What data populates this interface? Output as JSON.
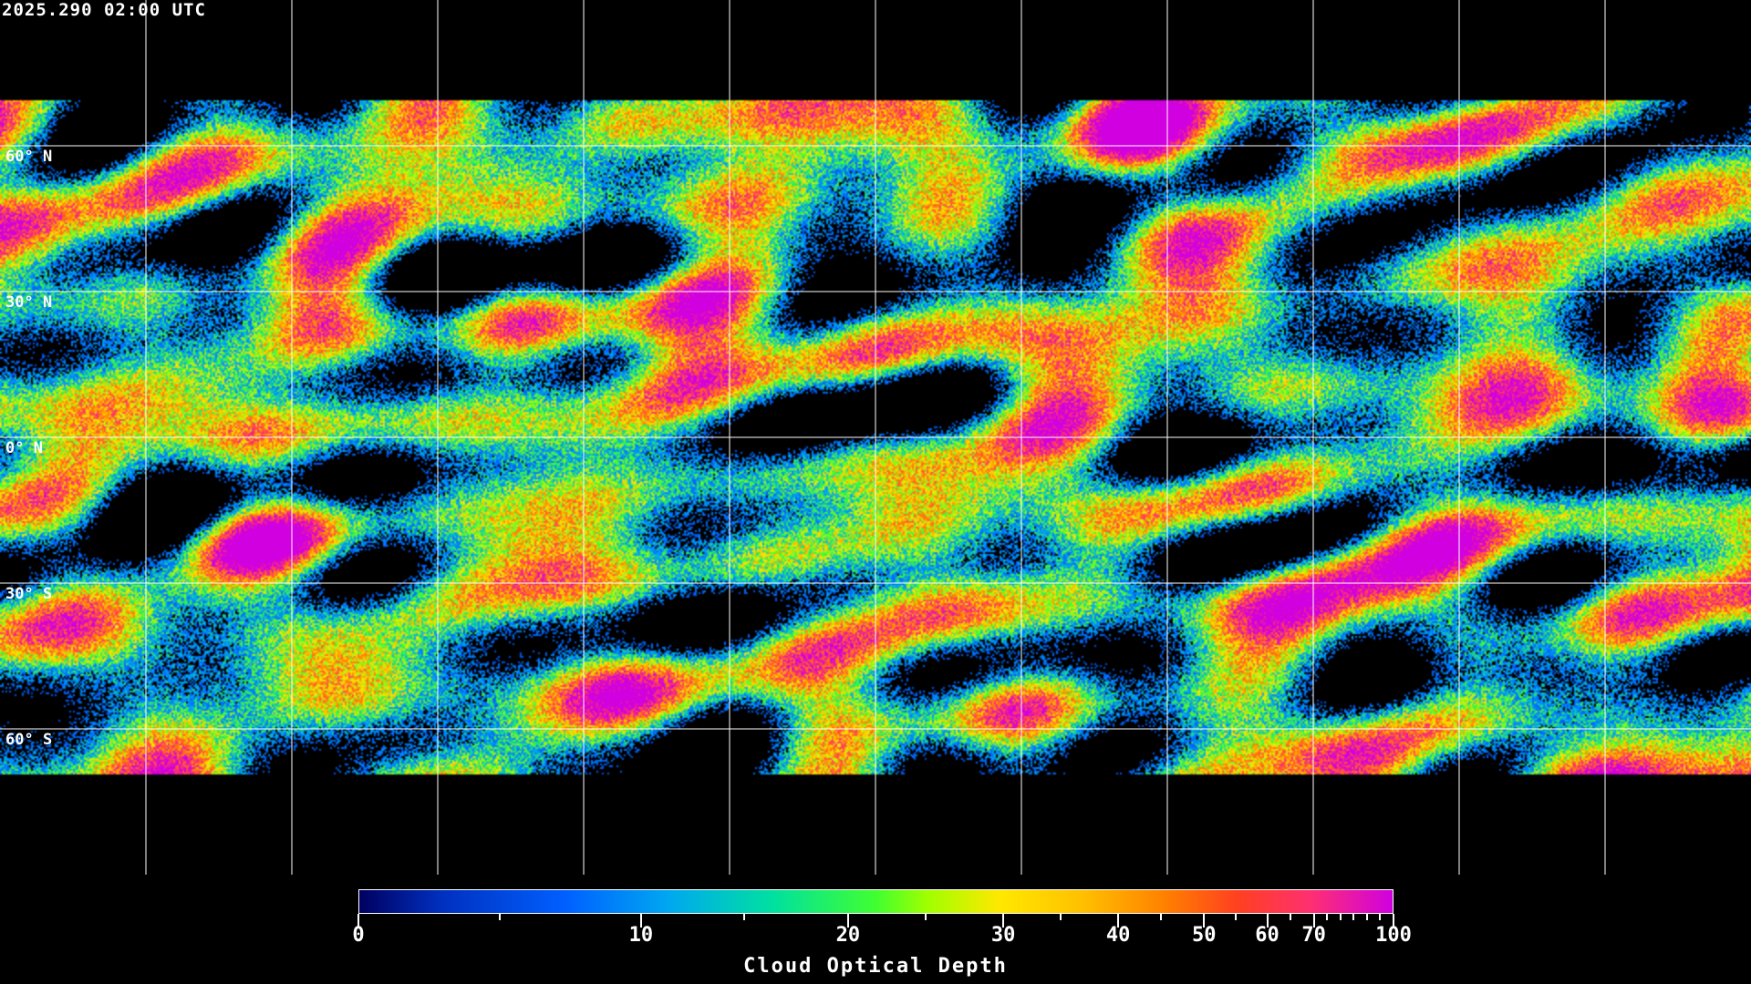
{
  "timestamp": "2025.290 02:00 UTC",
  "chart_data": {
    "type": "heatmap",
    "title": "2025.290 02:00 UTC",
    "projection": "equirectangular global map",
    "grid": true,
    "lat_labels": [
      "60° N",
      "30° N",
      "0° N",
      "30° S",
      "60° S"
    ],
    "colorbar": {
      "label": "Cloud Optical Depth",
      "range": [
        0,
        100
      ],
      "scale": "nonlinear",
      "tick_values": [
        0,
        10,
        20,
        30,
        40,
        50,
        60,
        70,
        100
      ],
      "tick_labels": [
        "0",
        "10",
        "20",
        "30",
        "40",
        "50",
        "60",
        "70",
        "100"
      ],
      "minor_ticks": [
        5,
        15,
        25,
        35,
        45,
        55,
        65,
        75,
        80,
        85,
        90,
        95
      ],
      "colors": [
        "#000060",
        "#0060ff",
        "#00a8f0",
        "#40ff30",
        "#ffe800",
        "#ff8000",
        "#ff3070",
        "#d000e0"
      ]
    },
    "background_color": "#000000",
    "coastline_color": "#ffffff"
  }
}
